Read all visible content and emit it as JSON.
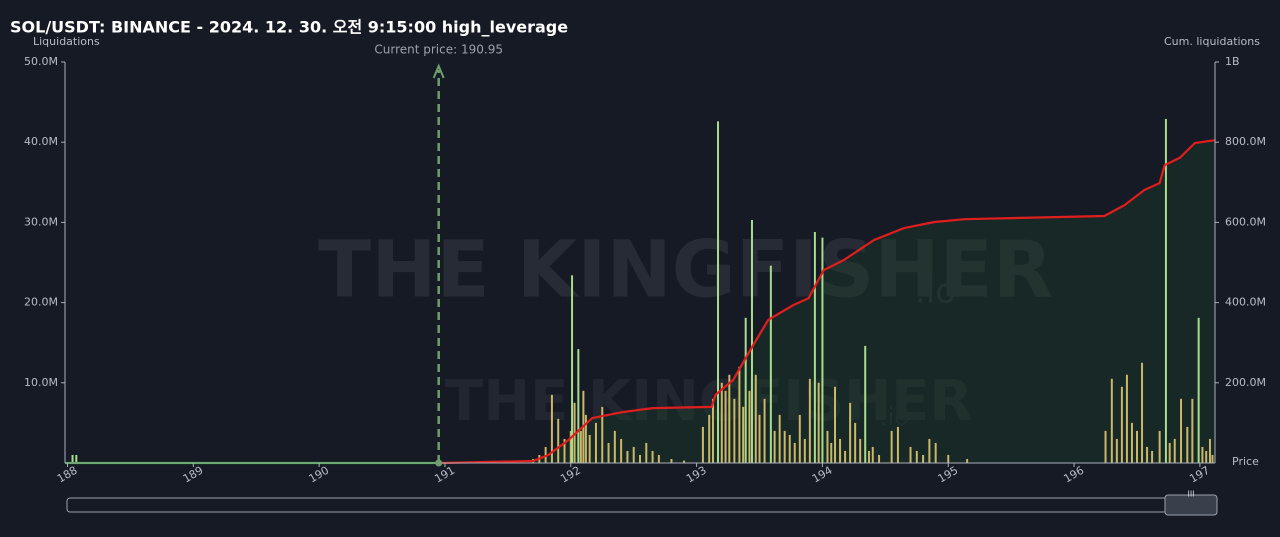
{
  "chart_data": {
    "type": "bar",
    "title": "SOL/USDT: BINANCE - 2024. 12. 30. 오전 9:15:00 high_leverage",
    "y_label": "Liquidations",
    "y2_label": "Cum. liquidations",
    "x_label": "Price",
    "annotation": "Current price: 190.95",
    "current_price": 190.95,
    "watermark": "THE KINGFISHER",
    "watermark_suffix": ".io",
    "xlim": [
      187.98,
      197.12
    ],
    "xticks": [
      188,
      189,
      190,
      191,
      192,
      193,
      194,
      195,
      196,
      197
    ],
    "ylim": [
      0,
      50000000
    ],
    "yticks": [
      {
        "value": 10000000,
        "label": "10.0M"
      },
      {
        "value": 20000000,
        "label": "20.0M"
      },
      {
        "value": 30000000,
        "label": "30.0M"
      },
      {
        "value": 40000000,
        "label": "40.0M"
      },
      {
        "value": 50000000,
        "label": "50.0M"
      }
    ],
    "y2lim": [
      0,
      1000000000
    ],
    "y2ticks": [
      {
        "value": 200000000,
        "label": "200.0M"
      },
      {
        "value": 400000000,
        "label": "400.0M"
      },
      {
        "value": 600000000,
        "label": "600.0M"
      },
      {
        "value": 800000000,
        "label": "800.0M"
      },
      {
        "value": 1000000000,
        "label": "1B"
      }
    ],
    "grid": false,
    "series": [
      {
        "type": "bar",
        "color": "#c9b76a",
        "x": [
          191.7,
          191.75,
          191.8,
          191.85,
          191.9,
          191.95,
          192.0,
          192.03,
          192.08,
          192.1,
          192.12,
          192.15,
          192.2,
          192.25,
          192.3,
          192.35,
          192.4,
          192.45,
          192.5,
          192.55,
          192.6,
          192.65,
          192.7,
          192.8,
          192.9,
          193.05,
          193.1,
          193.13,
          193.2,
          193.23,
          193.26,
          193.3,
          193.34,
          193.37,
          193.42,
          193.47,
          193.5,
          193.54,
          193.62,
          193.66,
          193.7,
          193.74,
          193.78,
          193.82,
          193.86,
          193.9,
          193.97,
          194.04,
          194.07,
          194.1,
          194.14,
          194.18,
          194.22,
          194.26,
          194.3,
          194.37,
          194.4,
          194.45,
          194.55,
          194.6,
          194.7,
          194.75,
          194.8,
          194.85,
          194.9,
          195.0,
          195.15,
          196.25,
          196.3,
          196.34,
          196.38,
          196.42,
          196.46,
          196.5,
          196.54,
          196.58,
          196.62,
          196.68,
          196.76,
          196.8,
          196.85,
          196.9,
          196.94,
          197.02,
          197.05,
          197.08,
          197.1
        ],
        "values": [
          500000,
          1000000,
          2000000,
          8500000,
          5500000,
          3000000,
          4000000,
          7500000,
          4000000,
          9000000,
          6000000,
          3500000,
          5000000,
          7000000,
          2500000,
          4000000,
          3000000,
          1500000,
          2000000,
          1000000,
          2500000,
          1500000,
          1000000,
          500000,
          300000,
          4500000,
          6000000,
          8000000,
          10000000,
          9000000,
          11000000,
          8000000,
          12000000,
          7000000,
          9000000,
          11000000,
          6000000,
          8000000,
          4000000,
          6000000,
          4000000,
          3500000,
          2500000,
          6000000,
          3000000,
          10500000,
          10000000,
          4000000,
          2500000,
          9500000,
          3000000,
          1500000,
          7500000,
          5000000,
          3000000,
          1500000,
          2000000,
          1000000,
          4000000,
          4500000,
          2000000,
          1500000,
          1000000,
          3000000,
          2500000,
          1000000,
          500000,
          4000000,
          10500000,
          3000000,
          9500000,
          11000000,
          5000000,
          4000000,
          12500000,
          2000000,
          1500000,
          4000000,
          2500000,
          3000000,
          8000000,
          4500000,
          8000000,
          2000000,
          1500000,
          3000000,
          1000000
        ]
      },
      {
        "type": "bar",
        "color": "#a8dc8c",
        "x": [
          188.04,
          188.07,
          192.01,
          192.06,
          193.17,
          193.39,
          193.44,
          193.59,
          193.94,
          194.0,
          194.34,
          196.73,
          196.99
        ],
        "values": [
          1000000,
          1000000,
          23400000,
          14200000,
          42600000,
          18100000,
          30300000,
          24600000,
          28800000,
          28100000,
          14600000,
          42900000,
          18100000
        ]
      },
      {
        "type": "line",
        "color": "#2e9e2e",
        "x": [
          187.98,
          190.95
        ],
        "values": [
          0,
          0
        ]
      },
      {
        "type": "line",
        "axis": "y2",
        "color": "#e01e1e",
        "fill": "rgba(28,70,40,0.35)",
        "x": [
          190.97,
          191.7,
          191.82,
          191.98,
          192.17,
          192.41,
          192.65,
          193.12,
          193.15,
          193.29,
          193.45,
          193.57,
          193.77,
          193.89,
          194.01,
          194.17,
          194.41,
          194.65,
          194.89,
          195.13,
          196.24,
          196.4,
          196.56,
          196.68,
          196.72,
          196.84,
          196.96,
          197.12
        ],
        "values": [
          0,
          5000000,
          20000000,
          57000000,
          112000000,
          127000000,
          137000000,
          140000000,
          170000000,
          207000000,
          294000000,
          357000000,
          394000000,
          411000000,
          481000000,
          506000000,
          556000000,
          586000000,
          601000000,
          608000000,
          616000000,
          643000000,
          681000000,
          698000000,
          743000000,
          761000000,
          798000000,
          805000000
        ]
      }
    ]
  }
}
